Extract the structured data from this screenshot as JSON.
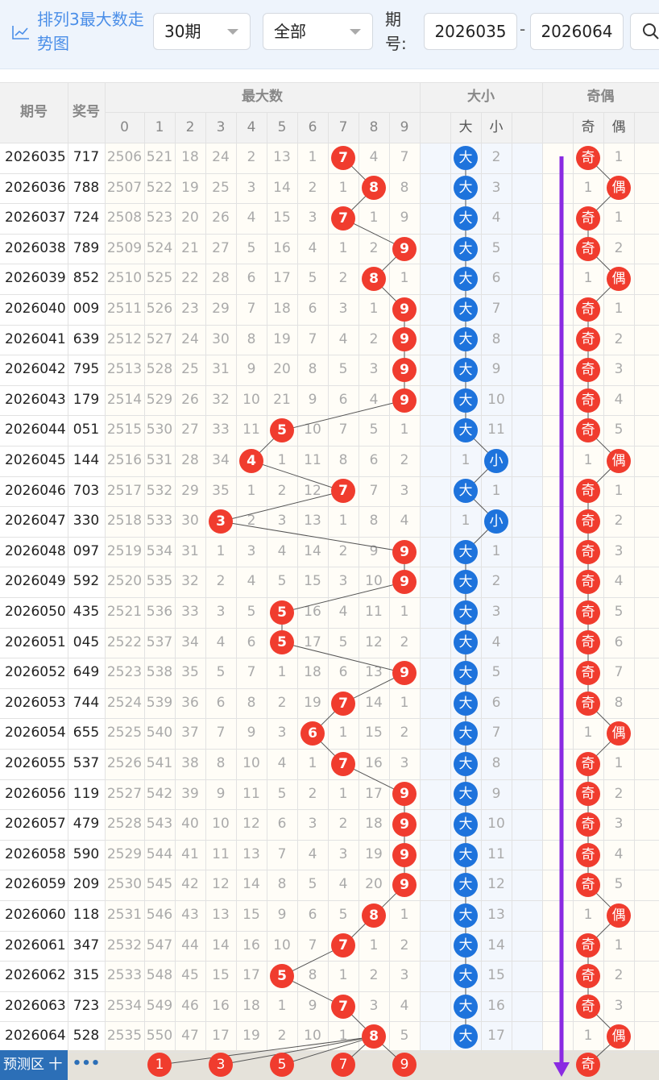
{
  "header": {
    "title": "排列3最大数走势图",
    "period_select": "30期",
    "filter_select": "全部",
    "qihao_label": "期号:",
    "range_from": "2026035",
    "range_dash": "-",
    "range_to": "2026064"
  },
  "table": {
    "col_period": "期号",
    "col_award": "奖号",
    "group_max": "最大数",
    "group_size": "大小",
    "group_parity": "奇偶",
    "max_digits": [
      "0",
      "1",
      "2",
      "3",
      "4",
      "5",
      "6",
      "7",
      "8",
      "9"
    ],
    "size_labels": [
      "大",
      "小"
    ],
    "parity_labels": [
      "奇",
      "偶"
    ],
    "rows": [
      {
        "period": "2026035",
        "award": "717",
        "miss": [
          "2506",
          "521",
          "18",
          "24",
          "2",
          "13",
          "1",
          "",
          "4",
          "7"
        ],
        "hit": 7,
        "size": "大",
        "size_miss": [
          "",
          "2"
        ],
        "parity": "奇",
        "parity_miss": [
          "",
          "1"
        ]
      },
      {
        "period": "2026036",
        "award": "788",
        "miss": [
          "2507",
          "522",
          "19",
          "25",
          "3",
          "14",
          "2",
          "1",
          "",
          "8"
        ],
        "hit": 8,
        "size": "大",
        "size_miss": [
          "",
          "3"
        ],
        "parity": "偶",
        "parity_miss": [
          "1",
          ""
        ]
      },
      {
        "period": "2026037",
        "award": "724",
        "miss": [
          "2508",
          "523",
          "20",
          "26",
          "4",
          "15",
          "3",
          "",
          "1",
          "9"
        ],
        "hit": 7,
        "size": "大",
        "size_miss": [
          "",
          "4"
        ],
        "parity": "奇",
        "parity_miss": [
          "",
          "1"
        ]
      },
      {
        "period": "2026038",
        "award": "789",
        "miss": [
          "2509",
          "524",
          "21",
          "27",
          "5",
          "16",
          "4",
          "1",
          "2",
          ""
        ],
        "hit": 9,
        "size": "大",
        "size_miss": [
          "",
          "5"
        ],
        "parity": "奇",
        "parity_miss": [
          "",
          "2"
        ]
      },
      {
        "period": "2026039",
        "award": "852",
        "miss": [
          "2510",
          "525",
          "22",
          "28",
          "6",
          "17",
          "5",
          "2",
          "",
          "1"
        ],
        "hit": 8,
        "size": "大",
        "size_miss": [
          "",
          "6"
        ],
        "parity": "偶",
        "parity_miss": [
          "1",
          ""
        ]
      },
      {
        "period": "2026040",
        "award": "009",
        "miss": [
          "2511",
          "526",
          "23",
          "29",
          "7",
          "18",
          "6",
          "3",
          "1",
          ""
        ],
        "hit": 9,
        "size": "大",
        "size_miss": [
          "",
          "7"
        ],
        "parity": "奇",
        "parity_miss": [
          "",
          "1"
        ]
      },
      {
        "period": "2026041",
        "award": "639",
        "miss": [
          "2512",
          "527",
          "24",
          "30",
          "8",
          "19",
          "7",
          "4",
          "2",
          ""
        ],
        "hit": 9,
        "size": "大",
        "size_miss": [
          "",
          "8"
        ],
        "parity": "奇",
        "parity_miss": [
          "",
          "2"
        ]
      },
      {
        "period": "2026042",
        "award": "795",
        "miss": [
          "2513",
          "528",
          "25",
          "31",
          "9",
          "20",
          "8",
          "5",
          "3",
          ""
        ],
        "hit": 9,
        "size": "大",
        "size_miss": [
          "",
          "9"
        ],
        "parity": "奇",
        "parity_miss": [
          "",
          "3"
        ]
      },
      {
        "period": "2026043",
        "award": "179",
        "miss": [
          "2514",
          "529",
          "26",
          "32",
          "10",
          "21",
          "9",
          "6",
          "4",
          ""
        ],
        "hit": 9,
        "size": "大",
        "size_miss": [
          "",
          "10"
        ],
        "parity": "奇",
        "parity_miss": [
          "",
          "4"
        ]
      },
      {
        "period": "2026044",
        "award": "051",
        "miss": [
          "2515",
          "530",
          "27",
          "33",
          "11",
          "",
          "10",
          "7",
          "5",
          "1"
        ],
        "hit": 5,
        "size": "大",
        "size_miss": [
          "",
          "11"
        ],
        "parity": "奇",
        "parity_miss": [
          "",
          "5"
        ]
      },
      {
        "period": "2026045",
        "award": "144",
        "miss": [
          "2516",
          "531",
          "28",
          "34",
          "",
          "1",
          "11",
          "8",
          "6",
          "2"
        ],
        "hit": 4,
        "size": "小",
        "size_miss": [
          "1",
          ""
        ],
        "parity": "偶",
        "parity_miss": [
          "1",
          ""
        ]
      },
      {
        "period": "2026046",
        "award": "703",
        "miss": [
          "2517",
          "532",
          "29",
          "35",
          "1",
          "2",
          "12",
          "",
          "7",
          "3"
        ],
        "hit": 7,
        "size": "大",
        "size_miss": [
          "",
          "1"
        ],
        "parity": "奇",
        "parity_miss": [
          "",
          "1"
        ]
      },
      {
        "period": "2026047",
        "award": "330",
        "miss": [
          "2518",
          "533",
          "30",
          "",
          "2",
          "3",
          "13",
          "1",
          "8",
          "4"
        ],
        "hit": 3,
        "size": "小",
        "size_miss": [
          "1",
          ""
        ],
        "parity": "奇",
        "parity_miss": [
          "",
          "2"
        ]
      },
      {
        "period": "2026048",
        "award": "097",
        "miss": [
          "2519",
          "534",
          "31",
          "1",
          "3",
          "4",
          "14",
          "2",
          "9",
          ""
        ],
        "hit": 9,
        "size": "大",
        "size_miss": [
          "",
          "1"
        ],
        "parity": "奇",
        "parity_miss": [
          "",
          "3"
        ]
      },
      {
        "period": "2026049",
        "award": "592",
        "miss": [
          "2520",
          "535",
          "32",
          "2",
          "4",
          "5",
          "15",
          "3",
          "10",
          ""
        ],
        "hit": 9,
        "size": "大",
        "size_miss": [
          "",
          "2"
        ],
        "parity": "奇",
        "parity_miss": [
          "",
          "4"
        ]
      },
      {
        "period": "2026050",
        "award": "435",
        "miss": [
          "2521",
          "536",
          "33",
          "3",
          "5",
          "",
          "16",
          "4",
          "11",
          "1"
        ],
        "hit": 5,
        "size": "大",
        "size_miss": [
          "",
          "3"
        ],
        "parity": "奇",
        "parity_miss": [
          "",
          "5"
        ]
      },
      {
        "period": "2026051",
        "award": "045",
        "miss": [
          "2522",
          "537",
          "34",
          "4",
          "6",
          "",
          "17",
          "5",
          "12",
          "2"
        ],
        "hit": 5,
        "size": "大",
        "size_miss": [
          "",
          "4"
        ],
        "parity": "奇",
        "parity_miss": [
          "",
          "6"
        ]
      },
      {
        "period": "2026052",
        "award": "649",
        "miss": [
          "2523",
          "538",
          "35",
          "5",
          "7",
          "1",
          "18",
          "6",
          "13",
          ""
        ],
        "hit": 9,
        "size": "大",
        "size_miss": [
          "",
          "5"
        ],
        "parity": "奇",
        "parity_miss": [
          "",
          "7"
        ]
      },
      {
        "period": "2026053",
        "award": "744",
        "miss": [
          "2524",
          "539",
          "36",
          "6",
          "8",
          "2",
          "19",
          "",
          "14",
          "1"
        ],
        "hit": 7,
        "size": "大",
        "size_miss": [
          "",
          "6"
        ],
        "parity": "奇",
        "parity_miss": [
          "",
          "8"
        ]
      },
      {
        "period": "2026054",
        "award": "655",
        "miss": [
          "2525",
          "540",
          "37",
          "7",
          "9",
          "3",
          "",
          "1",
          "15",
          "2"
        ],
        "hit": 6,
        "size": "大",
        "size_miss": [
          "",
          "7"
        ],
        "parity": "偶",
        "parity_miss": [
          "1",
          ""
        ]
      },
      {
        "period": "2026055",
        "award": "537",
        "miss": [
          "2526",
          "541",
          "38",
          "8",
          "10",
          "4",
          "1",
          "",
          "16",
          "3"
        ],
        "hit": 7,
        "size": "大",
        "size_miss": [
          "",
          "8"
        ],
        "parity": "奇",
        "parity_miss": [
          "",
          "1"
        ]
      },
      {
        "period": "2026056",
        "award": "119",
        "miss": [
          "2527",
          "542",
          "39",
          "9",
          "11",
          "5",
          "2",
          "1",
          "17",
          ""
        ],
        "hit": 9,
        "size": "大",
        "size_miss": [
          "",
          "9"
        ],
        "parity": "奇",
        "parity_miss": [
          "",
          "2"
        ]
      },
      {
        "period": "2026057",
        "award": "479",
        "miss": [
          "2528",
          "543",
          "40",
          "10",
          "12",
          "6",
          "3",
          "2",
          "18",
          ""
        ],
        "hit": 9,
        "size": "大",
        "size_miss": [
          "",
          "10"
        ],
        "parity": "奇",
        "parity_miss": [
          "",
          "3"
        ]
      },
      {
        "period": "2026058",
        "award": "590",
        "miss": [
          "2529",
          "544",
          "41",
          "11",
          "13",
          "7",
          "4",
          "3",
          "19",
          ""
        ],
        "hit": 9,
        "size": "大",
        "size_miss": [
          "",
          "11"
        ],
        "parity": "奇",
        "parity_miss": [
          "",
          "4"
        ]
      },
      {
        "period": "2026059",
        "award": "209",
        "miss": [
          "2530",
          "545",
          "42",
          "12",
          "14",
          "8",
          "5",
          "4",
          "20",
          ""
        ],
        "hit": 9,
        "size": "大",
        "size_miss": [
          "",
          "12"
        ],
        "parity": "奇",
        "parity_miss": [
          "",
          "5"
        ]
      },
      {
        "period": "2026060",
        "award": "118",
        "miss": [
          "2531",
          "546",
          "43",
          "13",
          "15",
          "9",
          "6",
          "5",
          "",
          "1"
        ],
        "hit": 8,
        "size": "大",
        "size_miss": [
          "",
          "13"
        ],
        "parity": "偶",
        "parity_miss": [
          "1",
          ""
        ]
      },
      {
        "period": "2026061",
        "award": "347",
        "miss": [
          "2532",
          "547",
          "44",
          "14",
          "16",
          "10",
          "7",
          "",
          "1",
          "2"
        ],
        "hit": 7,
        "size": "大",
        "size_miss": [
          "",
          "14"
        ],
        "parity": "奇",
        "parity_miss": [
          "",
          "1"
        ]
      },
      {
        "period": "2026062",
        "award": "315",
        "miss": [
          "2533",
          "548",
          "45",
          "15",
          "17",
          "",
          "8",
          "1",
          "2",
          "3"
        ],
        "hit": 5,
        "size": "大",
        "size_miss": [
          "",
          "15"
        ],
        "parity": "奇",
        "parity_miss": [
          "",
          "2"
        ]
      },
      {
        "period": "2026063",
        "award": "723",
        "miss": [
          "2534",
          "549",
          "46",
          "16",
          "18",
          "1",
          "9",
          "",
          "3",
          "4"
        ],
        "hit": 7,
        "size": "大",
        "size_miss": [
          "",
          "16"
        ],
        "parity": "奇",
        "parity_miss": [
          "",
          "3"
        ]
      },
      {
        "period": "2026064",
        "award": "528",
        "miss": [
          "2535",
          "550",
          "47",
          "17",
          "19",
          "2",
          "10",
          "1",
          "",
          "5"
        ],
        "hit": 8,
        "size": "大",
        "size_miss": [
          "",
          "17"
        ],
        "parity": "偶",
        "parity_miss": [
          "1",
          ""
        ]
      }
    ],
    "predict": {
      "label": "预测区 十",
      "more": "•••",
      "balls": [
        "1",
        "3",
        "5",
        "7",
        "9"
      ],
      "parity_ball": "奇"
    }
  },
  "colors": {
    "hit_red": "#f03c2e",
    "size_blue": "#1e73dc",
    "arrow_purple": "#8a2be2",
    "title_blue": "#4a8ee8",
    "predict_bg": "#2c6fb7"
  },
  "icons": [
    "trend-icon",
    "caret-down-icon",
    "search-icon",
    "arrow-down-icon"
  ]
}
